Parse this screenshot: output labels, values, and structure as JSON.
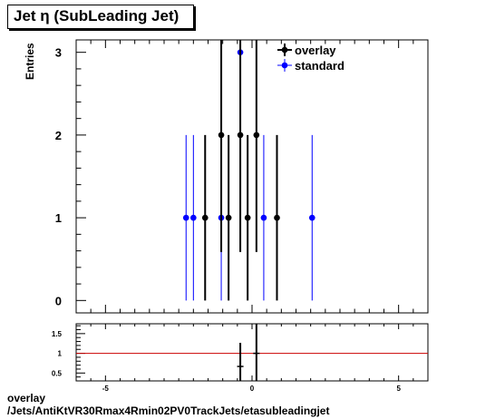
{
  "title": "Jet  η (SubLeading Jet)",
  "footer": {
    "line1": "overlay",
    "line2": "/Jets/AntiKtVR30Rmax4Rmin02PV0TrackJets/etasubleadingjet"
  },
  "legend": {
    "placement": "top-right"
  },
  "colors": {
    "overlay": "#000000",
    "standard": "#0000ff",
    "ratio_line": "#cc0000"
  },
  "chart_data": [
    {
      "type": "scatter",
      "title": "Jet  η (SubLeading Jet)",
      "xlabel": "",
      "ylabel": "Entries",
      "xlim": [
        -6,
        6
      ],
      "ylim": [
        -0.15,
        3.15
      ],
      "x_major_ticks": [
        -5,
        0,
        5
      ],
      "y_ticks": [
        0,
        1,
        2,
        3
      ],
      "x_tick_labels": [],
      "y_tick_labels": [
        "0",
        "1",
        "2",
        "3"
      ],
      "grid": false,
      "series": [
        {
          "name": "overlay",
          "points": [
            {
              "x": -1.6,
              "y": 1
            },
            {
              "x": -1.05,
              "y": 2
            },
            {
              "x": -0.8,
              "y": 1
            },
            {
              "x": -0.4,
              "y": 2
            },
            {
              "x": -0.15,
              "y": 1
            },
            {
              "x": 0.15,
              "y": 2
            },
            {
              "x": 0.85,
              "y": 1
            }
          ]
        },
        {
          "name": "standard",
          "points": [
            {
              "x": -2.25,
              "y": 1
            },
            {
              "x": -2.0,
              "y": 1
            },
            {
              "x": -1.05,
              "y": 1
            },
            {
              "x": -0.4,
              "y": 3
            },
            {
              "x": 0.4,
              "y": 1
            },
            {
              "x": 2.05,
              "y": 1
            }
          ]
        }
      ]
    },
    {
      "type": "scatter",
      "title": "",
      "xlabel": "",
      "ylabel": "",
      "xlim": [
        -6,
        6
      ],
      "ylim": [
        0.3,
        1.75
      ],
      "x_major_ticks": [
        -5,
        0,
        5
      ],
      "x_tick_labels": [
        "-5",
        "0",
        "5"
      ],
      "y_ticks": [
        0.5,
        1,
        1.5
      ],
      "y_tick_labels": [
        "0.5",
        "1",
        "1.5"
      ],
      "reference_line": 1,
      "series": [
        {
          "name": "ratio",
          "points": [
            {
              "x": -0.4,
              "y": 0.667,
              "err": 0.6
            },
            {
              "x": 0.15,
              "y": 1.0,
              "err": 1.0
            }
          ]
        }
      ]
    }
  ]
}
